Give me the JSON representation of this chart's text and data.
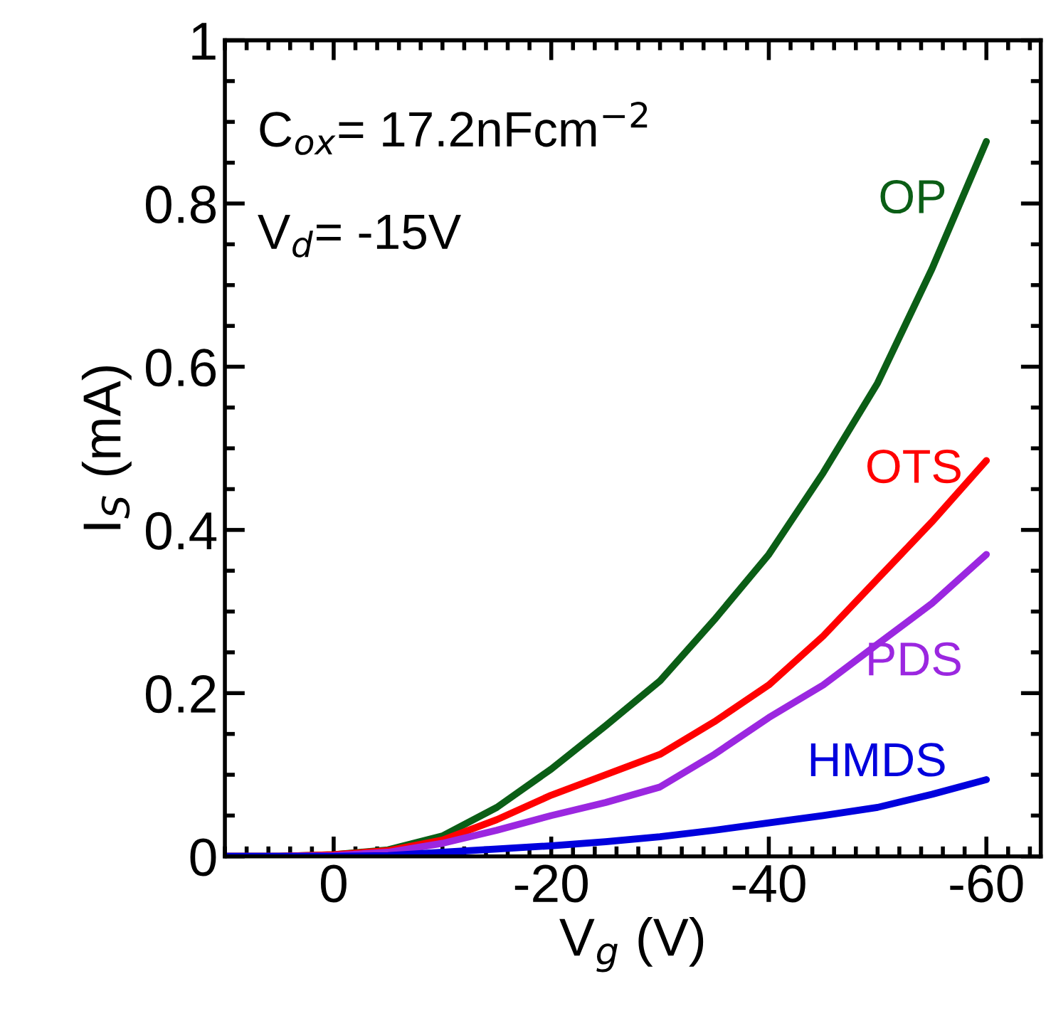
{
  "chart_data": {
    "type": "line",
    "xlabel": "V$_{g}$ (V)",
    "ylabel": "I$_{S}$ (mA)",
    "x": [
      10,
      5,
      0,
      -5,
      -10,
      -15,
      -20,
      -25,
      -30,
      -35,
      -40,
      -45,
      -50,
      -55,
      -60
    ],
    "series": [
      {
        "name": "OP",
        "color": "#0b5e16",
        "values": [
          0,
          0,
          0.002,
          0.008,
          0.025,
          0.06,
          0.107,
          0.16,
          0.215,
          0.29,
          0.37,
          0.47,
          0.58,
          0.72,
          0.876
        ]
      },
      {
        "name": "OTS",
        "color": "#ff0000",
        "values": [
          0,
          0,
          0.002,
          0.007,
          0.02,
          0.045,
          0.075,
          0.1,
          0.125,
          0.165,
          0.21,
          0.27,
          0.34,
          0.41,
          0.485
        ]
      },
      {
        "name": "PDS",
        "color": "#9b27e0",
        "values": [
          0,
          0,
          0.001,
          0.005,
          0.016,
          0.032,
          0.05,
          0.066,
          0.085,
          0.125,
          0.17,
          0.21,
          0.26,
          0.31,
          0.37
        ]
      },
      {
        "name": "HMDS",
        "color": "#0000dd",
        "values": [
          0,
          0,
          0,
          0.001,
          0.005,
          0.009,
          0.013,
          0.018,
          0.024,
          0.032,
          0.041,
          0.05,
          0.06,
          0.076,
          0.094
        ]
      }
    ],
    "xlim": [
      10,
      -65
    ],
    "xticks": [
      0,
      -20,
      -40,
      -60
    ],
    "ylim": [
      0,
      1
    ],
    "yticks": [
      0,
      0.2,
      0.4,
      0.6,
      0.8,
      1
    ],
    "annotations": [
      "C$_{ox}$= 17.2nFcm$^{−2}$",
      "V$_{d}$= -15V"
    ],
    "grid": false,
    "legend": false,
    "marker": "none",
    "line_style": "solid"
  }
}
